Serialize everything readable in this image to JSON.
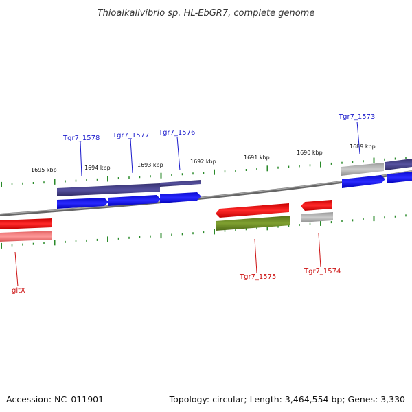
{
  "title": "Thioalkalivibrio sp. HL-EbGR7, complete genome",
  "footer": {
    "accession": "Accession: NC_011901",
    "summary": "Topology: circular; Length: 3,464,554 bp; Genes: 3,330"
  },
  "scale_labels": [
    "1695 kbp",
    "1694 kbp",
    "1693 kbp",
    "1692 kbp",
    "1691 kbp",
    "1690 kbp",
    "1689 kbp"
  ],
  "gene_labels": {
    "tgr7_1578": "Tgr7_1578",
    "tgr7_1577": "Tgr7_1577",
    "tgr7_1576": "Tgr7_1576",
    "tgr7_1573": "Tgr7_1573",
    "tgr7_1575": "Tgr7_1575",
    "tgr7_1574": "Tgr7_1574",
    "gltx": "gltX"
  },
  "colors": {
    "forward_label": "#1a1acc",
    "reverse_label": "#cc1111",
    "cds_forward": "#1010ee",
    "gene_forward": "#45408a",
    "cds_reverse": "#ee0a0a",
    "gene_reverse_olive": "#6a8a22",
    "gene_reverse_pink": "#ee7777",
    "pseudo_gray": "#aaaaaa",
    "backbone": "#888888",
    "ticks": "#2a8a2a"
  }
}
